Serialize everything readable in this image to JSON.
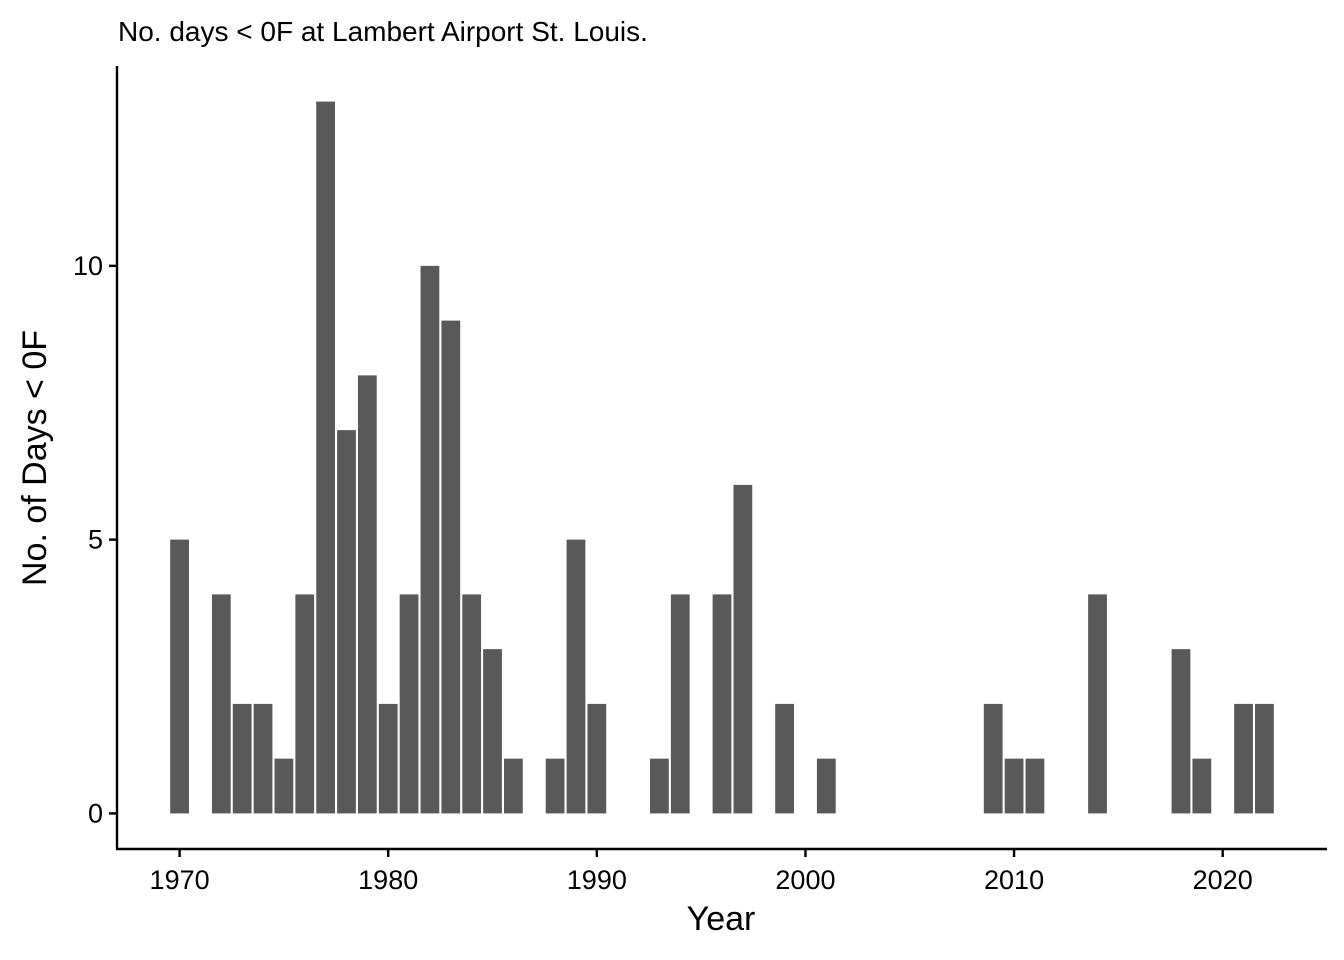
{
  "chart_data": {
    "type": "bar",
    "title": "No. days < 0F at Lambert Airport St. Louis.",
    "xlabel": "Year",
    "ylabel": "No. of Days < 0F",
    "x": [
      1970,
      1972,
      1973,
      1974,
      1975,
      1976,
      1977,
      1978,
      1979,
      1980,
      1981,
      1982,
      1983,
      1984,
      1985,
      1986,
      1988,
      1989,
      1990,
      1993,
      1994,
      1996,
      1997,
      1999,
      2001,
      2009,
      2010,
      2011,
      2014,
      2018,
      2019,
      2021,
      2022
    ],
    "values": [
      5,
      4,
      2,
      2,
      1,
      4,
      13,
      7,
      8,
      2,
      4,
      10,
      9,
      4,
      3,
      1,
      1,
      5,
      2,
      1,
      4,
      4,
      6,
      2,
      1,
      2,
      1,
      1,
      4,
      3,
      1,
      2,
      2
    ],
    "xticks": [
      1970,
      1980,
      1990,
      2000,
      2010,
      2020
    ],
    "xtick_labels": [
      "1970",
      "1980",
      "1990",
      "2000",
      "2010",
      "2020"
    ],
    "yticks": [
      0,
      5,
      10
    ],
    "ytick_labels": [
      "0",
      "5",
      "10"
    ],
    "xlim": [
      1967,
      2025
    ],
    "ylim": [
      -0.65,
      13.65
    ],
    "bar_color": "#595959",
    "grid": false,
    "legend": "none"
  }
}
